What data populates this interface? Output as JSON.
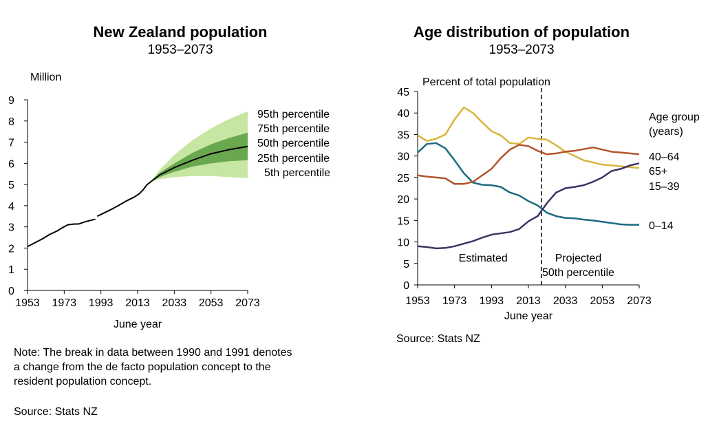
{
  "left": {
    "title": "New Zealand population",
    "subtitle": "1953–2073",
    "ylabel": "Million",
    "xlabel": "June year",
    "note": "Note: The break in data between 1990 and 1991 denotes a change from the de facto population concept to the resident population concept.",
    "note_lines": [
      "Note: The break in data between 1990 and 1991 denotes",
      "a change from the de facto population concept to the",
      "resident population concept."
    ],
    "source": "Source: Stats NZ"
  },
  "right": {
    "title": "Age distribution of population",
    "subtitle": "1953–2073",
    "ylabel": "Percent of total population",
    "xlabel": "June year",
    "legend_title_lines": [
      "Age group",
      "(years)"
    ],
    "estimated_label": "Estimated",
    "projected_label_lines": [
      "Projected",
      "50th percentile"
    ],
    "source": "Source: Stats NZ"
  },
  "colors": {
    "band_outer": "#c7e6a3",
    "band_inner": "#6aa84f",
    "median": "#000000",
    "age_0_14": "#1b6c80",
    "age_15_39": "#d9b43c",
    "age_40_64": "#b5532c",
    "age_65_plus": "#3a3565"
  },
  "chart_data": [
    {
      "type": "area",
      "title": "New Zealand population",
      "subtitle": "1953–2073",
      "xlabel": "June year",
      "ylabel": "Million",
      "xlim": [
        1953,
        2073
      ],
      "ylim": [
        0,
        9
      ],
      "xticks": [
        1953,
        1973,
        1993,
        2013,
        2033,
        2053,
        2073
      ],
      "yticks": [
        0,
        1,
        2,
        3,
        4,
        5,
        6,
        7,
        8,
        9
      ],
      "grid": false,
      "estimated": [
        {
          "x": 1953,
          "y": 2.07
        },
        {
          "x": 1957,
          "y": 2.25
        },
        {
          "x": 1961,
          "y": 2.43
        },
        {
          "x": 1965,
          "y": 2.64
        },
        {
          "x": 1969,
          "y": 2.8
        },
        {
          "x": 1972,
          "y": 2.96
        },
        {
          "x": 1975,
          "y": 3.1
        },
        {
          "x": 1978,
          "y": 3.13
        },
        {
          "x": 1981,
          "y": 3.14
        },
        {
          "x": 1984,
          "y": 3.23
        },
        {
          "x": 1987,
          "y": 3.3
        },
        {
          "x": 1990,
          "y": 3.36
        }
      ],
      "estimated_resident": [
        {
          "x": 1991,
          "y": 3.5
        },
        {
          "x": 1995,
          "y": 3.67
        },
        {
          "x": 1999,
          "y": 3.84
        },
        {
          "x": 2003,
          "y": 4.03
        },
        {
          "x": 2007,
          "y": 4.23
        },
        {
          "x": 2011,
          "y": 4.4
        },
        {
          "x": 2014,
          "y": 4.57
        },
        {
          "x": 2016,
          "y": 4.75
        },
        {
          "x": 2018,
          "y": 4.98
        },
        {
          "x": 2020,
          "y": 5.12
        }
      ],
      "projection_x": [
        2020,
        2025,
        2033,
        2043,
        2053,
        2063,
        2073
      ],
      "series": [
        {
          "name": "95th percentile",
          "values": [
            5.12,
            5.7,
            6.4,
            7.1,
            7.65,
            8.1,
            8.45
          ]
        },
        {
          "name": "75th percentile",
          "values": [
            5.12,
            5.55,
            6.0,
            6.5,
            6.9,
            7.2,
            7.45
          ]
        },
        {
          "name": "50th percentile",
          "values": [
            5.12,
            5.45,
            5.8,
            6.15,
            6.45,
            6.65,
            6.8
          ]
        },
        {
          "name": "25th percentile",
          "values": [
            5.12,
            5.35,
            5.6,
            5.85,
            6.0,
            6.1,
            6.15
          ]
        },
        {
          "name": "5th percentile",
          "values": [
            5.12,
            5.25,
            5.35,
            5.4,
            5.4,
            5.35,
            5.3
          ]
        }
      ]
    },
    {
      "type": "line",
      "title": "Age distribution of population",
      "subtitle": "1953–2073",
      "xlabel": "June year",
      "ylabel": "Percent of total population",
      "xlim": [
        1953,
        2073
      ],
      "ylim": [
        0,
        45
      ],
      "xticks": [
        1953,
        1973,
        1993,
        2013,
        2033,
        2053,
        2073
      ],
      "yticks": [
        0,
        5,
        10,
        15,
        20,
        25,
        30,
        35,
        40,
        45
      ],
      "grid": false,
      "divider_x": 2020,
      "x": [
        1953,
        1958,
        1963,
        1968,
        1973,
        1978,
        1983,
        1988,
        1993,
        1998,
        2003,
        2008,
        2013,
        2018,
        2023,
        2028,
        2033,
        2038,
        2043,
        2048,
        2053,
        2058,
        2063,
        2068,
        2073
      ],
      "series": [
        {
          "name": "0–14",
          "values": [
            30.8,
            32.8,
            33.0,
            31.8,
            29.0,
            26.0,
            23.8,
            23.3,
            23.2,
            22.8,
            21.5,
            20.8,
            19.5,
            18.5,
            16.8,
            16.0,
            15.6,
            15.5,
            15.2,
            15.0,
            14.7,
            14.4,
            14.1,
            14.0,
            14.0
          ]
        },
        {
          "name": "15–39",
          "values": [
            34.8,
            33.5,
            34.0,
            35.0,
            38.5,
            41.3,
            40.0,
            37.8,
            35.8,
            34.8,
            33.0,
            32.8,
            34.3,
            34.0,
            33.8,
            32.5,
            31.0,
            30.0,
            29.0,
            28.5,
            28.0,
            27.8,
            27.6,
            27.4,
            27.2
          ]
        },
        {
          "name": "40–64",
          "values": [
            25.5,
            25.2,
            25.0,
            24.8,
            23.5,
            23.5,
            24.0,
            25.5,
            27.0,
            29.5,
            31.5,
            32.6,
            32.3,
            31.2,
            30.4,
            30.6,
            31.0,
            31.2,
            31.6,
            32.0,
            31.5,
            31.0,
            30.8,
            30.6,
            30.4
          ]
        },
        {
          "name": "65+",
          "values": [
            9.0,
            8.8,
            8.5,
            8.6,
            9.0,
            9.6,
            10.2,
            11.0,
            11.7,
            12.0,
            12.3,
            13.0,
            14.8,
            16.0,
            19.0,
            21.5,
            22.5,
            22.8,
            23.2,
            24.0,
            25.0,
            26.5,
            27.0,
            27.8,
            28.3
          ]
        }
      ]
    }
  ]
}
